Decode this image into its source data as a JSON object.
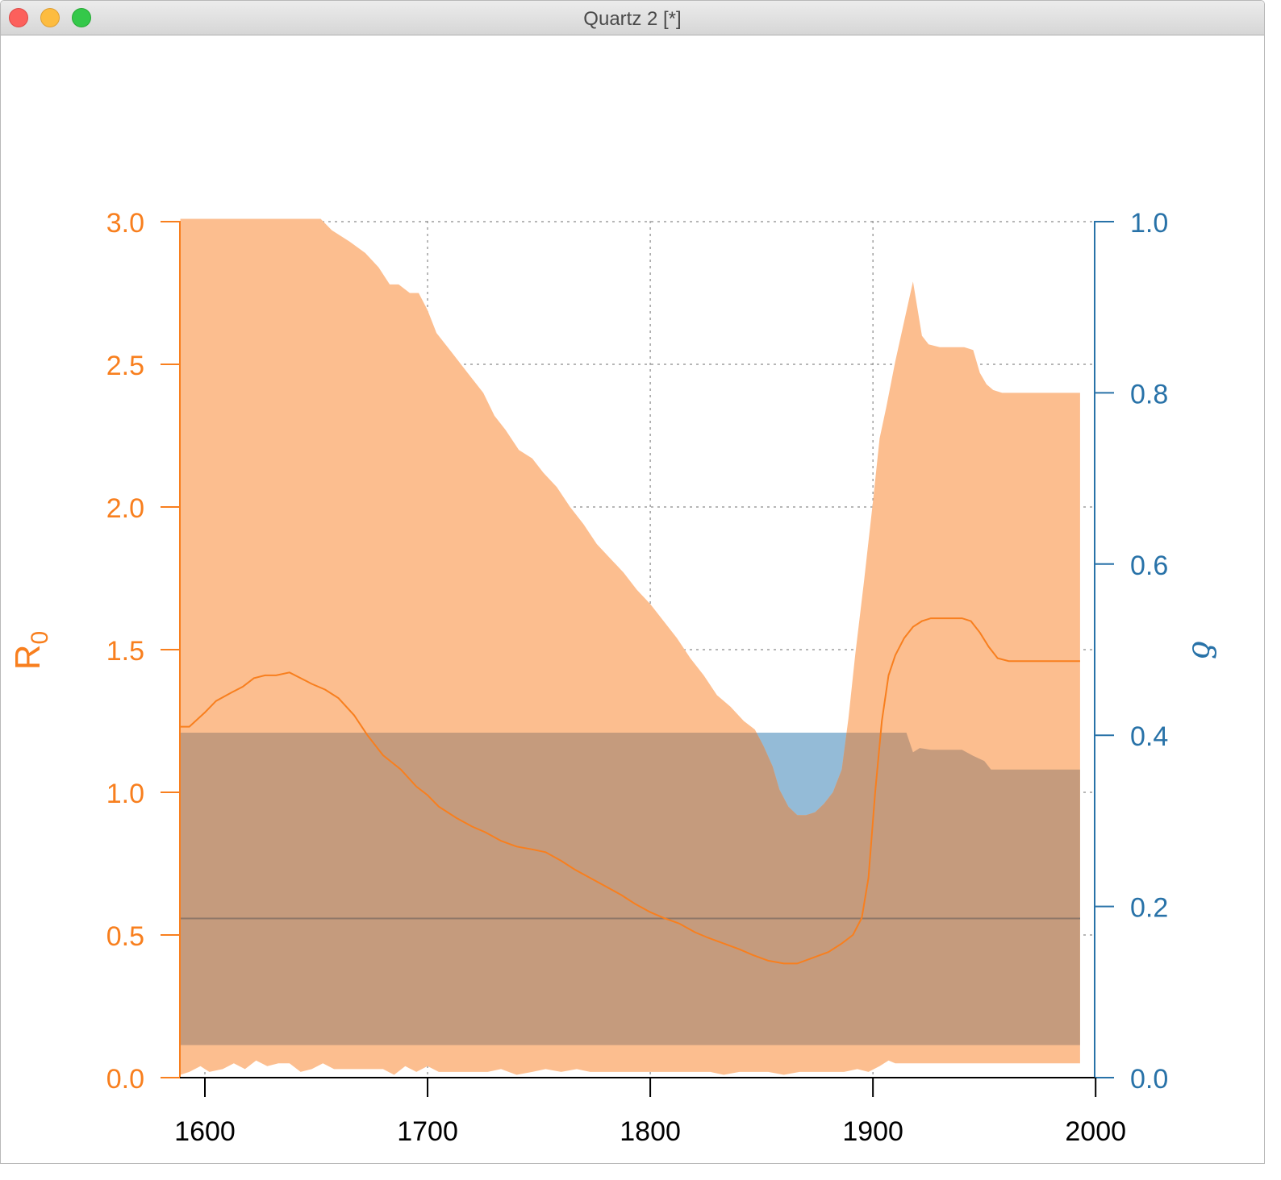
{
  "window": {
    "title": "Quartz 2 [*]"
  },
  "colors": {
    "r0": "#f87f1e",
    "r0_band": "#fcbe8f",
    "delta": "#2872a8",
    "delta_band": "#94bbd7",
    "overlap": "#c59b7d",
    "grid": "#8a8a8a"
  },
  "chart_data": {
    "type": "area",
    "title": "",
    "xlabel": "",
    "ylabel": "R",
    "ylabel_sub": "0",
    "y2label": "δ",
    "xlim": [
      1600,
      2000
    ],
    "ylim": [
      0,
      3
    ],
    "y2lim": [
      0,
      1
    ],
    "x_ticks": [
      "1600",
      "1700",
      "1800",
      "1900",
      "2000"
    ],
    "y_ticks": [
      "0.0",
      "0.5",
      "1.0",
      "1.5",
      "2.0",
      "2.5",
      "3.0"
    ],
    "y2_ticks": [
      "0.0",
      "0.2",
      "0.4",
      "0.6",
      "0.8",
      "1.0"
    ],
    "grid": true,
    "series": [
      {
        "axis": "left",
        "line": [
          [
            1589,
            1.23
          ],
          [
            1593,
            1.23
          ],
          [
            1600,
            1.28
          ],
          [
            1605,
            1.32
          ],
          [
            1612,
            1.35
          ],
          [
            1617,
            1.37
          ],
          [
            1622,
            1.4
          ],
          [
            1627,
            1.41
          ],
          [
            1632,
            1.41
          ],
          [
            1638,
            1.42
          ],
          [
            1643,
            1.4
          ],
          [
            1648,
            1.38
          ],
          [
            1654,
            1.36
          ],
          [
            1660,
            1.33
          ],
          [
            1667,
            1.27
          ],
          [
            1673,
            1.2
          ],
          [
            1680,
            1.13
          ],
          [
            1688,
            1.08
          ],
          [
            1695,
            1.02
          ],
          [
            1700,
            0.99
          ],
          [
            1705,
            0.95
          ],
          [
            1713,
            0.91
          ],
          [
            1720,
            0.88
          ],
          [
            1726,
            0.86
          ],
          [
            1733,
            0.83
          ],
          [
            1740,
            0.81
          ],
          [
            1747,
            0.8
          ],
          [
            1753,
            0.79
          ],
          [
            1760,
            0.76
          ],
          [
            1766,
            0.73
          ],
          [
            1773,
            0.7
          ],
          [
            1780,
            0.67
          ],
          [
            1787,
            0.64
          ],
          [
            1793,
            0.61
          ],
          [
            1800,
            0.58
          ],
          [
            1806,
            0.56
          ],
          [
            1813,
            0.54
          ],
          [
            1820,
            0.51
          ],
          [
            1826,
            0.49
          ],
          [
            1833,
            0.47
          ],
          [
            1840,
            0.45
          ],
          [
            1846,
            0.43
          ],
          [
            1853,
            0.41
          ],
          [
            1860,
            0.4
          ],
          [
            1866,
            0.4
          ],
          [
            1873,
            0.42
          ],
          [
            1880,
            0.44
          ],
          [
            1886,
            0.47
          ],
          [
            1891,
            0.5
          ],
          [
            1895,
            0.56
          ],
          [
            1898,
            0.7
          ],
          [
            1901,
            1.0
          ],
          [
            1904,
            1.25
          ],
          [
            1907,
            1.41
          ],
          [
            1910,
            1.48
          ],
          [
            1914,
            1.54
          ],
          [
            1918,
            1.58
          ],
          [
            1922,
            1.6
          ],
          [
            1926,
            1.61
          ],
          [
            1933,
            1.61
          ],
          [
            1940,
            1.61
          ],
          [
            1944,
            1.6
          ],
          [
            1948,
            1.56
          ],
          [
            1952,
            1.51
          ],
          [
            1956,
            1.47
          ],
          [
            1961,
            1.46
          ],
          [
            1993,
            1.46
          ]
        ],
        "band_upper": [
          [
            1589,
            3.01
          ],
          [
            1652,
            3.01
          ],
          [
            1657,
            2.97
          ],
          [
            1665,
            2.93
          ],
          [
            1672,
            2.89
          ],
          [
            1678,
            2.84
          ],
          [
            1683,
            2.78
          ],
          [
            1687,
            2.78
          ],
          [
            1692,
            2.75
          ],
          [
            1696,
            2.75
          ],
          [
            1700,
            2.69
          ],
          [
            1704,
            2.61
          ],
          [
            1710,
            2.55
          ],
          [
            1718,
            2.47
          ],
          [
            1725,
            2.4
          ],
          [
            1730,
            2.32
          ],
          [
            1735,
            2.27
          ],
          [
            1741,
            2.2
          ],
          [
            1747,
            2.17
          ],
          [
            1752,
            2.12
          ],
          [
            1758,
            2.07
          ],
          [
            1764,
            2.0
          ],
          [
            1770,
            1.94
          ],
          [
            1776,
            1.87
          ],
          [
            1782,
            1.82
          ],
          [
            1788,
            1.77
          ],
          [
            1794,
            1.71
          ],
          [
            1800,
            1.66
          ],
          [
            1806,
            1.6
          ],
          [
            1812,
            1.54
          ],
          [
            1818,
            1.47
          ],
          [
            1824,
            1.41
          ],
          [
            1830,
            1.34
          ],
          [
            1836,
            1.3
          ],
          [
            1842,
            1.25
          ],
          [
            1847,
            1.22
          ],
          [
            1851,
            1.16
          ],
          [
            1855,
            1.09
          ],
          [
            1858,
            1.01
          ],
          [
            1862,
            0.95
          ],
          [
            1866,
            0.92
          ],
          [
            1870,
            0.92
          ],
          [
            1874,
            0.93
          ],
          [
            1878,
            0.96
          ],
          [
            1882,
            1.0
          ],
          [
            1886,
            1.08
          ],
          [
            1889,
            1.26
          ],
          [
            1892,
            1.48
          ],
          [
            1896,
            1.74
          ],
          [
            1900,
            2.02
          ],
          [
            1903,
            2.24
          ],
          [
            1906,
            2.35
          ],
          [
            1910,
            2.51
          ],
          [
            1914,
            2.65
          ],
          [
            1918,
            2.79
          ],
          [
            1922,
            2.6
          ],
          [
            1925,
            2.57
          ],
          [
            1930,
            2.56
          ],
          [
            1935,
            2.56
          ],
          [
            1941,
            2.56
          ],
          [
            1945,
            2.55
          ],
          [
            1948,
            2.47
          ],
          [
            1951,
            2.43
          ],
          [
            1954,
            2.41
          ],
          [
            1958,
            2.4
          ],
          [
            1993,
            2.4
          ]
        ],
        "band_lower": [
          [
            1589,
            0.01
          ],
          [
            1593,
            0.02
          ],
          [
            1598,
            0.04
          ],
          [
            1602,
            0.02
          ],
          [
            1608,
            0.03
          ],
          [
            1613,
            0.05
          ],
          [
            1618,
            0.03
          ],
          [
            1623,
            0.06
          ],
          [
            1628,
            0.04
          ],
          [
            1633,
            0.05
          ],
          [
            1638,
            0.05
          ],
          [
            1643,
            0.02
          ],
          [
            1648,
            0.03
          ],
          [
            1653,
            0.05
          ],
          [
            1658,
            0.03
          ],
          [
            1670,
            0.03
          ],
          [
            1680,
            0.03
          ],
          [
            1685,
            0.01
          ],
          [
            1690,
            0.04
          ],
          [
            1695,
            0.02
          ],
          [
            1700,
            0.04
          ],
          [
            1705,
            0.02
          ],
          [
            1712,
            0.02
          ],
          [
            1720,
            0.02
          ],
          [
            1727,
            0.02
          ],
          [
            1733,
            0.03
          ],
          [
            1740,
            0.01
          ],
          [
            1747,
            0.02
          ],
          [
            1753,
            0.03
          ],
          [
            1760,
            0.02
          ],
          [
            1767,
            0.03
          ],
          [
            1773,
            0.02
          ],
          [
            1780,
            0.02
          ],
          [
            1787,
            0.02
          ],
          [
            1793,
            0.02
          ],
          [
            1800,
            0.02
          ],
          [
            1807,
            0.02
          ],
          [
            1813,
            0.02
          ],
          [
            1820,
            0.02
          ],
          [
            1827,
            0.02
          ],
          [
            1833,
            0.01
          ],
          [
            1840,
            0.02
          ],
          [
            1847,
            0.02
          ],
          [
            1853,
            0.02
          ],
          [
            1860,
            0.01
          ],
          [
            1867,
            0.02
          ],
          [
            1873,
            0.02
          ],
          [
            1880,
            0.02
          ],
          [
            1887,
            0.02
          ],
          [
            1893,
            0.03
          ],
          [
            1898,
            0.02
          ],
          [
            1903,
            0.04
          ],
          [
            1907,
            0.06
          ],
          [
            1910,
            0.05
          ],
          [
            1993,
            0.05
          ]
        ]
      },
      {
        "axis": "right",
        "line": [
          [
            1589,
            0.186
          ],
          [
            1993,
            0.186
          ]
        ],
        "band_upper": [
          [
            1589,
            0.403
          ],
          [
            1915,
            0.403
          ],
          [
            1918,
            0.38
          ],
          [
            1921,
            0.385
          ],
          [
            1926,
            0.383
          ],
          [
            1934,
            0.383
          ],
          [
            1940,
            0.383
          ],
          [
            1945,
            0.376
          ],
          [
            1950,
            0.37
          ],
          [
            1953,
            0.36
          ],
          [
            1958,
            0.36
          ],
          [
            1993,
            0.36
          ]
        ],
        "band_lower": [
          [
            1589,
            0.038
          ],
          [
            1993,
            0.038
          ]
        ]
      }
    ]
  }
}
